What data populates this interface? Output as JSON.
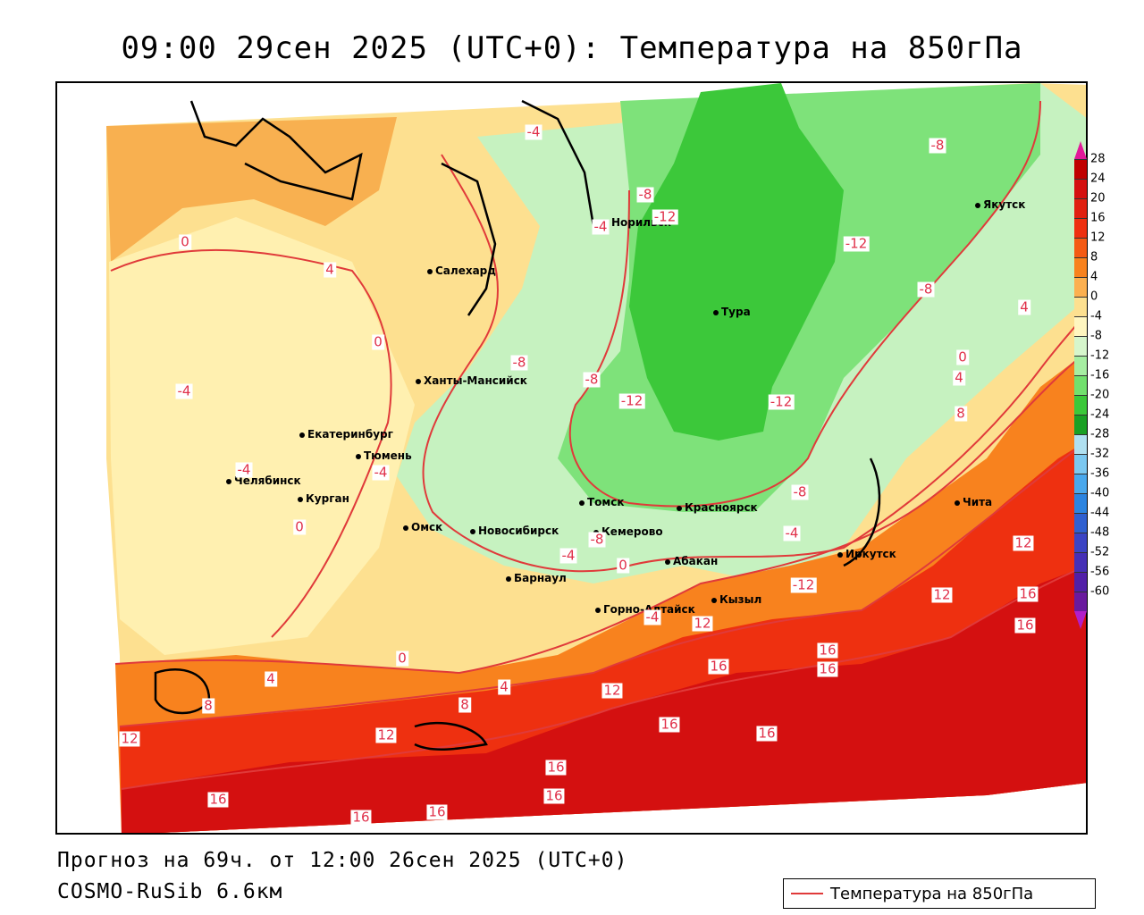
{
  "title": "09:00 29сен 2025 (UTC+0): Температура на 850гПа",
  "forecast_text": "Прогноз на 69ч. от 12:00 26сен 2025 (UTC+0)",
  "model_text": "COSMO-RuSib 6.6км",
  "legend_label": "Температура на 850гПа",
  "colorbar": {
    "ticks": [
      "28",
      "24",
      "20",
      "16",
      "12",
      "8",
      "4",
      "0",
      "-4",
      "-8",
      "-12",
      "-16",
      "-20",
      "-24",
      "-28",
      "-32",
      "-36",
      "-40",
      "-44",
      "-48",
      "-52",
      "-56",
      "-60"
    ],
    "colors": [
      "#c00000",
      "#d41010",
      "#e02010",
      "#ee3010",
      "#f45a14",
      "#f8821e",
      "#fcb050",
      "#fde090",
      "#fff6c0",
      "#d6f6cc",
      "#a6eea2",
      "#72e06e",
      "#3cc83a",
      "#1aa024",
      "#b0e0f0",
      "#7cc8f0",
      "#4aa8ec",
      "#2c84e0",
      "#3060d0",
      "#3c44c4",
      "#4630b6",
      "#5220a8",
      "#6a1a9e"
    ]
  },
  "cities": [
    {
      "name": "Норильск"
    },
    {
      "name": "Якутск"
    },
    {
      "name": "Салехард"
    },
    {
      "name": "Тура"
    },
    {
      "name": "Ханты-Мансийск"
    },
    {
      "name": "Екатеринбург"
    },
    {
      "name": "Тюмень"
    },
    {
      "name": "Челябинск"
    },
    {
      "name": "Курган"
    },
    {
      "name": "Омск"
    },
    {
      "name": "Томск"
    },
    {
      "name": "Кемерово"
    },
    {
      "name": "Новосибирск"
    },
    {
      "name": "Красноярск"
    },
    {
      "name": "Абакан"
    },
    {
      "name": "Барнаул"
    },
    {
      "name": "Горно-Алтайск"
    },
    {
      "name": "Кызыл"
    },
    {
      "name": "Иркутск"
    },
    {
      "name": "Чита"
    }
  ],
  "contour_labels": [
    "-4",
    "-8",
    "-12",
    "-8",
    "-12",
    "-8",
    "4",
    "0",
    "4",
    "0",
    "-4",
    "-4",
    "0",
    "-8",
    "-8",
    "-12",
    "-12",
    "4",
    "-4",
    "-4",
    "-8",
    "0",
    "-8",
    "-4",
    "-4",
    "0",
    "12",
    "12",
    "16",
    "-12",
    "8",
    "-4",
    "8",
    "0",
    "4",
    "4",
    "12",
    "12",
    "16",
    "16",
    "16",
    "16",
    "16",
    "8",
    "12",
    "12",
    "16",
    "16",
    "16",
    "16",
    "16",
    "16"
  ]
}
